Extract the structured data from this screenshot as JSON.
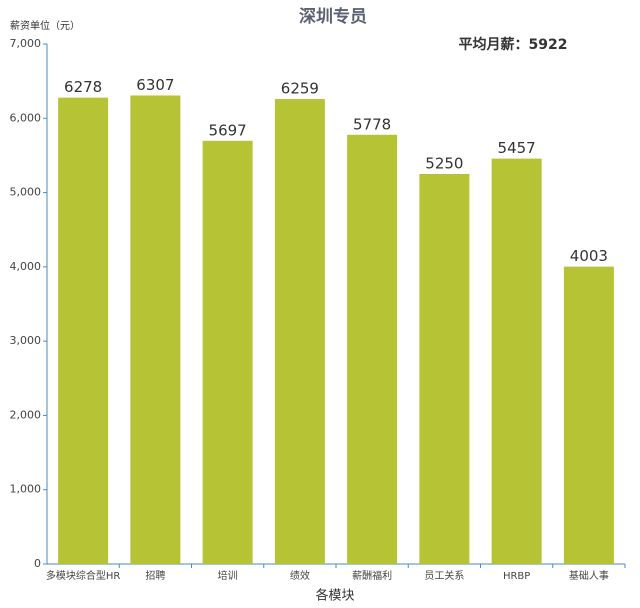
{
  "chart_data": {
    "type": "bar",
    "title": "深圳专员",
    "y_label": "薪资单位（元）",
    "x_label": "各模块",
    "annotation": "平均月薪：5922",
    "categories": [
      "多模块综合型HR",
      "招聘",
      "培训",
      "绩效",
      "薪酬福利",
      "员工关系",
      "HRBP",
      "基础人事"
    ],
    "values": [
      6278,
      6307,
      5697,
      6259,
      5778,
      5250,
      5457,
      4003
    ],
    "color": "#b5c334",
    "axis_color": "#4a8ac8",
    "ylim": [
      0,
      7000
    ],
    "yticks": [
      0,
      {
        "value": 1000,
        "label": "1,000"
      },
      {
        "value": 2000,
        "label": "2,000"
      },
      {
        "value": 3000,
        "label": "3,000"
      },
      {
        "value": 4000,
        "label": "4,000"
      },
      {
        "value": 5000,
        "label": "5,000"
      },
      {
        "value": 6000,
        "label": "6,000"
      },
      {
        "value": 7000,
        "label": "7,000"
      }
    ]
  }
}
